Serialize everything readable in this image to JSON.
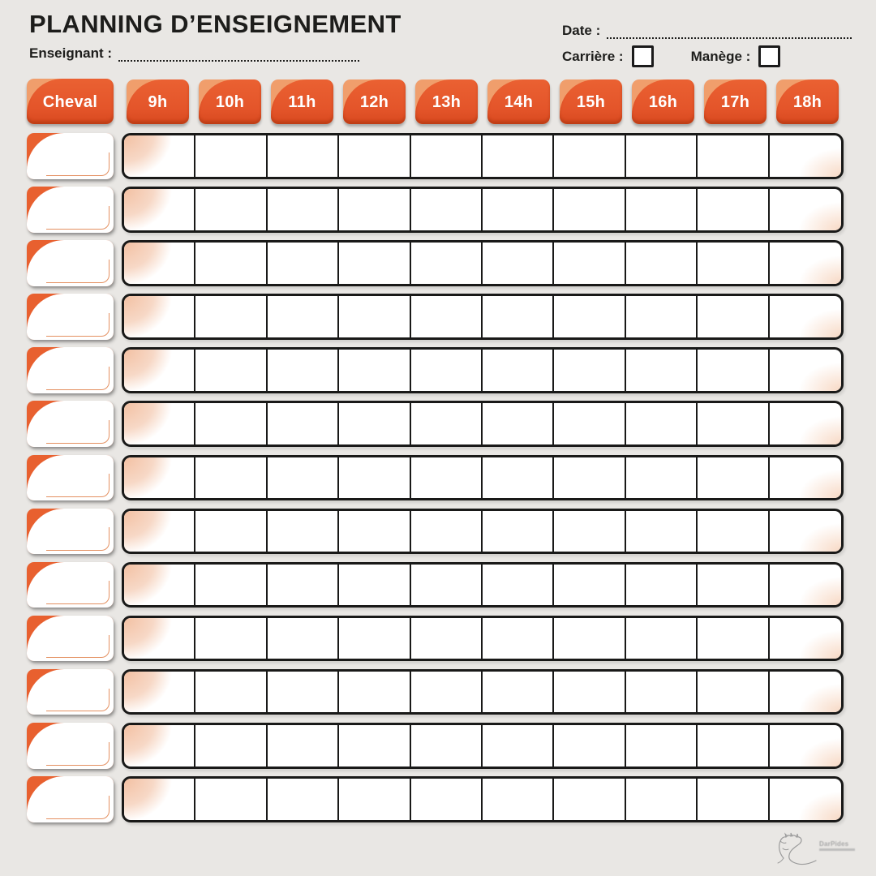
{
  "header": {
    "title": "PLANNING D’ENSEIGNEMENT",
    "enseignant_label": "Enseignant :",
    "date_label": "Date :",
    "carriere_label": "Carrière :",
    "manege_label": "Manège :"
  },
  "table": {
    "corner_label": "Cheval",
    "hours": [
      "9h",
      "10h",
      "11h",
      "12h",
      "13h",
      "14h",
      "15h",
      "16h",
      "17h",
      "18h"
    ],
    "row_count": 13
  },
  "colors": {
    "accent_orange": "#e4552a",
    "accent_orange_light": "#f09e6c",
    "accent_peach": "#f3c0a2",
    "line_black": "#191918",
    "background_gray": "#e9e7e4"
  },
  "logo": {
    "text": "DarPides"
  }
}
